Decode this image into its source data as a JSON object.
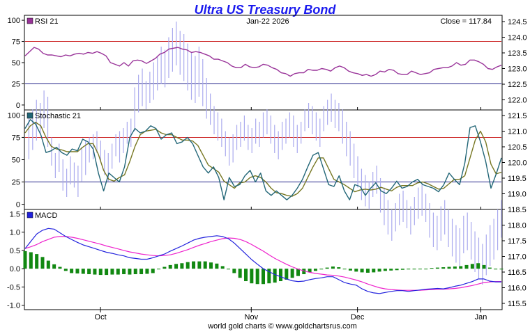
{
  "chart_data": {
    "type": "line",
    "title": "Ultra US Treasury Bond",
    "date_label": "Jan-22  2026",
    "close_label": "Close = 117.84",
    "footer": "world gold charts © www.goldchartsrus.com",
    "x_ticks": [
      "Oct",
      "Nov",
      "Dec",
      "Jan"
    ],
    "x_tick_index": [
      22,
      66,
      97,
      133
    ],
    "colors": {
      "title": "#1a1aee",
      "price_bars": "#aaaaee",
      "rsi": "#993399",
      "stoch_k": "#226677",
      "stoch_d": "#777722",
      "macd_line": "#2222dd",
      "macd_signal": "#ee22cc",
      "macd_hist": "#118811",
      "upper_line": "#cc2222",
      "lower_line": "#222288"
    },
    "price": {
      "ylim": [
        115.3,
        124.7
      ],
      "ticks": [
        "124.5",
        "124.0",
        "123.5",
        "123.0",
        "122.5",
        "122.0",
        "121.5",
        "121.0",
        "120.5",
        "120.0",
        "119.5",
        "119.0",
        "118.5",
        "118.0",
        "117.5",
        "117.0",
        "116.5",
        "116.0",
        "115.5"
      ],
      "tick_values": [
        124.5,
        124.0,
        123.5,
        123.0,
        122.5,
        122.0,
        121.5,
        121.0,
        120.5,
        120.0,
        119.5,
        119.0,
        118.5,
        118.0,
        117.5,
        117.0,
        116.5,
        116.0,
        115.5
      ],
      "bars": [
        [
          1,
          121.4,
          120.1
        ],
        [
          2,
          121.7,
          120.4
        ],
        [
          3,
          122.0,
          120.7
        ],
        [
          4,
          121.9,
          120.9
        ],
        [
          5,
          122.3,
          121.1
        ],
        [
          6,
          122.1,
          120.5
        ],
        [
          7,
          120.8,
          119.9
        ],
        [
          8,
          120.3,
          119.5
        ],
        [
          9,
          120.6,
          119.7
        ],
        [
          10,
          120.1,
          119.1
        ],
        [
          11,
          119.8,
          118.9
        ],
        [
          12,
          120.2,
          119.3
        ],
        [
          13,
          120.0,
          119.2
        ],
        [
          14,
          119.9,
          118.9
        ],
        [
          15,
          120.5,
          119.4
        ],
        [
          16,
          120.7,
          119.6
        ],
        [
          17,
          120.8,
          120.0
        ],
        [
          18,
          120.9,
          120.1
        ],
        [
          19,
          121.0,
          120.3
        ],
        [
          20,
          120.7,
          120.0
        ],
        [
          21,
          120.4,
          119.6
        ],
        [
          22,
          120.3,
          119.4
        ],
        [
          23,
          120.6,
          119.8
        ],
        [
          24,
          120.9,
          120.2
        ],
        [
          25,
          121.0,
          120.0
        ],
        [
          26,
          121.1,
          120.3
        ],
        [
          27,
          121.3,
          120.6
        ],
        [
          28,
          121.4,
          120.5
        ],
        [
          29,
          122.4,
          121.0
        ],
        [
          30,
          122.8,
          121.6
        ],
        [
          31,
          123.0,
          121.8
        ],
        [
          32,
          122.6,
          121.7
        ],
        [
          33,
          122.9,
          121.9
        ],
        [
          34,
          123.2,
          122.0
        ],
        [
          35,
          123.4,
          122.3
        ],
        [
          36,
          123.7,
          122.5
        ],
        [
          37,
          123.6,
          122.4
        ],
        [
          38,
          124.0,
          122.7
        ],
        [
          39,
          124.3,
          122.9
        ],
        [
          40,
          124.5,
          123.1
        ],
        [
          41,
          124.2,
          122.8
        ],
        [
          42,
          124.1,
          122.6
        ],
        [
          43,
          123.8,
          122.3
        ],
        [
          44,
          123.5,
          122.0
        ],
        [
          45,
          123.4,
          121.9
        ],
        [
          46,
          123.7,
          122.1
        ],
        [
          47,
          123.3,
          121.8
        ],
        [
          48,
          122.7,
          121.4
        ],
        [
          49,
          122.2,
          121.2
        ],
        [
          50,
          121.8,
          120.9
        ],
        [
          51,
          121.6,
          120.7
        ],
        [
          52,
          121.4,
          120.5
        ],
        [
          53,
          121.0,
          120.2
        ],
        [
          54,
          120.8,
          119.9
        ],
        [
          55,
          120.9,
          120.0
        ],
        [
          56,
          121.2,
          120.4
        ],
        [
          57,
          121.3,
          120.5
        ],
        [
          58,
          121.5,
          120.7
        ],
        [
          59,
          121.2,
          120.4
        ],
        [
          60,
          121.1,
          120.3
        ],
        [
          61,
          121.4,
          120.6
        ],
        [
          62,
          121.3,
          120.5
        ],
        [
          63,
          121.6,
          120.8
        ],
        [
          64,
          121.7,
          120.9
        ],
        [
          65,
          121.5,
          120.6
        ],
        [
          66,
          121.2,
          120.3
        ],
        [
          67,
          121.0,
          120.1
        ],
        [
          68,
          121.3,
          120.4
        ],
        [
          69,
          121.4,
          120.6
        ],
        [
          70,
          121.6,
          120.8
        ],
        [
          71,
          121.5,
          120.5
        ],
        [
          72,
          121.2,
          120.3
        ],
        [
          73,
          121.3,
          120.6
        ],
        [
          74,
          121.7,
          121.0
        ],
        [
          75,
          121.9,
          121.1
        ],
        [
          76,
          121.8,
          120.9
        ],
        [
          77,
          121.6,
          120.7
        ],
        [
          78,
          121.4,
          120.5
        ],
        [
          79,
          121.8,
          121.0
        ],
        [
          80,
          122.0,
          121.2
        ],
        [
          81,
          122.2,
          121.3
        ],
        [
          82,
          122.0,
          121.1
        ],
        [
          83,
          121.9,
          121.0
        ],
        [
          84,
          121.7,
          120.6
        ],
        [
          85,
          121.3,
          120.2
        ],
        [
          86,
          121.0,
          119.9
        ],
        [
          87,
          120.6,
          119.5
        ],
        [
          88,
          120.2,
          119.2
        ],
        [
          89,
          119.8,
          118.8
        ],
        [
          90,
          119.6,
          118.6
        ],
        [
          91,
          119.4,
          118.5
        ],
        [
          92,
          119.7,
          118.9
        ],
        [
          93,
          119.9,
          119.0
        ],
        [
          94,
          119.5,
          118.4
        ],
        [
          95,
          119.2,
          118.0
        ],
        [
          96,
          118.8,
          117.7
        ],
        [
          97,
          118.5,
          117.5
        ],
        [
          98,
          118.7,
          117.8
        ],
        [
          99,
          119.0,
          118.0
        ],
        [
          100,
          119.1,
          118.1
        ],
        [
          101,
          118.8,
          117.9
        ],
        [
          102,
          118.6,
          117.7
        ],
        [
          103,
          118.9,
          118.0
        ],
        [
          104,
          119.2,
          118.2
        ],
        [
          105,
          119.3,
          118.3
        ],
        [
          106,
          119.0,
          118.1
        ],
        [
          107,
          118.7,
          117.6
        ],
        [
          108,
          118.4,
          117.3
        ],
        [
          109,
          118.3,
          117.2
        ],
        [
          110,
          118.6,
          117.5
        ],
        [
          111,
          118.8,
          117.7
        ],
        [
          112,
          118.5,
          117.3
        ],
        [
          113,
          118.2,
          117.0
        ],
        [
          114,
          118.0,
          116.8
        ],
        [
          115,
          117.9,
          116.7
        ],
        [
          116,
          118.3,
          117.1
        ],
        [
          117,
          118.4,
          117.2
        ],
        [
          118,
          118.1,
          116.9
        ],
        [
          119,
          117.8,
          116.5
        ],
        [
          120,
          117.6,
          116.3
        ],
        [
          121,
          117.4,
          116.1
        ],
        [
          122,
          117.7,
          116.4
        ],
        [
          123,
          118.0,
          116.7
        ],
        [
          124,
          118.2,
          116.9
        ],
        [
          125,
          118.5,
          117.2
        ],
        [
          126,
          118.8,
          117.6
        ]
      ]
    },
    "rsi": {
      "label": "RSI 21",
      "ylim": [
        -5,
        105
      ],
      "ticks": [
        "100",
        "75",
        "50",
        "25",
        "0"
      ],
      "tick_values": [
        100,
        75,
        50,
        25,
        0
      ],
      "upper": 75,
      "lower": 25,
      "values": [
        58,
        63,
        68,
        66,
        61,
        59,
        59,
        58,
        57,
        59,
        58,
        60,
        61,
        60,
        62,
        61,
        63,
        61,
        58,
        50,
        48,
        46,
        50,
        46,
        52,
        53,
        52,
        49,
        52,
        55,
        60,
        62,
        66,
        67,
        68,
        66,
        65,
        62,
        63,
        62,
        60,
        58,
        54,
        54,
        52,
        50,
        46,
        44,
        44,
        48,
        45,
        44,
        45,
        48,
        47,
        44,
        42,
        38,
        37,
        34,
        37,
        38,
        38,
        42,
        41,
        41,
        43,
        42,
        40,
        44,
        46,
        44,
        40,
        38,
        37,
        35,
        36,
        34,
        36,
        40,
        39,
        42,
        41,
        37,
        36,
        36,
        40,
        38,
        36,
        37,
        38,
        42,
        43,
        44,
        44,
        46,
        50,
        47,
        48,
        53,
        53,
        51,
        48,
        43,
        42,
        45,
        47
      ]
    },
    "stochastic": {
      "label": "Stochastic 21",
      "ylim": [
        -5,
        105
      ],
      "ticks": [
        "100",
        "75",
        "50",
        "25",
        "0"
      ],
      "tick_values": [
        100,
        75,
        50,
        25,
        0
      ],
      "upper": 75,
      "lower": 25,
      "k": [
        85,
        95,
        90,
        78,
        58,
        60,
        64,
        58,
        55,
        62,
        60,
        73,
        70,
        62,
        35,
        15,
        35,
        30,
        25,
        42,
        75,
        85,
        80,
        82,
        88,
        85,
        73,
        78,
        80,
        68,
        70,
        75,
        68,
        55,
        42,
        35,
        42,
        30,
        5,
        30,
        20,
        22,
        32,
        38,
        25,
        35,
        15,
        10,
        15,
        10,
        5,
        10,
        18,
        28,
        42,
        55,
        58,
        40,
        22,
        20,
        32,
        15,
        5,
        22,
        20,
        10,
        18,
        24,
        15,
        12,
        18,
        26,
        18,
        20,
        25,
        28,
        22,
        20,
        18,
        14,
        22,
        35,
        28,
        22,
        46,
        86,
        88,
        70,
        48,
        18,
        34,
        52
      ],
      "d": [
        80,
        88,
        92,
        88,
        75,
        65,
        62,
        61,
        59,
        59,
        59,
        64,
        68,
        68,
        56,
        38,
        28,
        26,
        30,
        33,
        48,
        65,
        78,
        82,
        83,
        84,
        80,
        78,
        78,
        75,
        72,
        72,
        71,
        66,
        55,
        44,
        40,
        36,
        26,
        22,
        18,
        24,
        25,
        30,
        32,
        30,
        25,
        18,
        13,
        12,
        10,
        9,
        12,
        18,
        30,
        42,
        52,
        52,
        40,
        28,
        25,
        22,
        18,
        14,
        16,
        17,
        16,
        17,
        19,
        17,
        15,
        19,
        21,
        21,
        21,
        24,
        25,
        23,
        20,
        17,
        18,
        23,
        28,
        28,
        32,
        52,
        72,
        82,
        70,
        45,
        34,
        36
      ]
    },
    "macd": {
      "label": "MACD",
      "ylim": [
        -1.1,
        1.6
      ],
      "ticks": [
        "1.5",
        "1.0",
        "0.5",
        "0.0",
        "-0.5",
        "-1.0"
      ],
      "tick_values": [
        1.5,
        1.0,
        0.5,
        0.0,
        -0.5,
        -1.0
      ],
      "line": [
        0.55,
        0.75,
        0.95,
        1.05,
        1.1,
        1.08,
        0.98,
        0.88,
        0.8,
        0.72,
        0.65,
        0.6,
        0.55,
        0.5,
        0.45,
        0.42,
        0.38,
        0.35,
        0.3,
        0.28,
        0.26,
        0.26,
        0.3,
        0.35,
        0.4,
        0.48,
        0.55,
        0.62,
        0.7,
        0.78,
        0.83,
        0.86,
        0.88,
        0.9,
        0.88,
        0.82,
        0.7,
        0.55,
        0.4,
        0.25,
        0.12,
        0.0,
        -0.08,
        -0.16,
        -0.22,
        -0.28,
        -0.33,
        -0.35,
        -0.34,
        -0.3,
        -0.27,
        -0.25,
        -0.22,
        -0.22,
        -0.3,
        -0.38,
        -0.42,
        -0.45,
        -0.55,
        -0.62,
        -0.66,
        -0.68,
        -0.65,
        -0.62,
        -0.6,
        -0.6,
        -0.62,
        -0.6,
        -0.58,
        -0.56,
        -0.55,
        -0.54,
        -0.55,
        -0.52,
        -0.48,
        -0.45,
        -0.4,
        -0.35,
        -0.28,
        -0.28,
        -0.34,
        -0.36,
        -0.36
      ],
      "signal": [
        0.55,
        0.6,
        0.66,
        0.74,
        0.8,
        0.86,
        0.88,
        0.88,
        0.86,
        0.83,
        0.79,
        0.75,
        0.71,
        0.67,
        0.62,
        0.58,
        0.54,
        0.5,
        0.46,
        0.43,
        0.4,
        0.38,
        0.36,
        0.35,
        0.36,
        0.38,
        0.42,
        0.47,
        0.52,
        0.58,
        0.64,
        0.69,
        0.74,
        0.78,
        0.82,
        0.84,
        0.83,
        0.8,
        0.74,
        0.66,
        0.57,
        0.48,
        0.38,
        0.28,
        0.2,
        0.12,
        0.05,
        -0.01,
        -0.06,
        -0.1,
        -0.13,
        -0.15,
        -0.17,
        -0.18,
        -0.2,
        -0.23,
        -0.27,
        -0.31,
        -0.36,
        -0.42,
        -0.47,
        -0.52,
        -0.55,
        -0.57,
        -0.58,
        -0.59,
        -0.59,
        -0.59,
        -0.59,
        -0.58,
        -0.57,
        -0.56,
        -0.56,
        -0.55,
        -0.54,
        -0.52,
        -0.49,
        -0.46,
        -0.42,
        -0.38,
        -0.36,
        -0.35,
        -0.35
      ],
      "hist": [
        0.48,
        0.45,
        0.4,
        0.32,
        0.22,
        0.12,
        0.05,
        -0.06,
        -0.12,
        -0.13,
        -0.14,
        -0.15,
        -0.16,
        -0.17,
        -0.17,
        -0.16,
        -0.16,
        -0.15,
        -0.16,
        -0.15,
        -0.15,
        -0.14,
        -0.12,
        0.0,
        0.05,
        0.1,
        0.13,
        0.15,
        0.18,
        0.2,
        0.2,
        0.2,
        0.17,
        0.14,
        0.07,
        -0.02,
        -0.12,
        -0.25,
        -0.34,
        -0.4,
        -0.42,
        -0.42,
        -0.4,
        -0.38,
        -0.34,
        -0.3,
        -0.25,
        -0.2,
        -0.15,
        -0.1,
        -0.06,
        -0.02,
        0.03,
        0.06,
        0.04,
        0.0,
        -0.05,
        -0.08,
        -0.1,
        -0.11,
        -0.1,
        -0.08,
        -0.06,
        -0.05,
        -0.04,
        -0.03,
        -0.02,
        -0.02,
        -0.01,
        0.0,
        0.02,
        0.03,
        0.04,
        0.05,
        0.06,
        0.07,
        0.1,
        0.13,
        0.15,
        0.1,
        0.03,
        -0.02,
        -0.02
      ]
    }
  }
}
